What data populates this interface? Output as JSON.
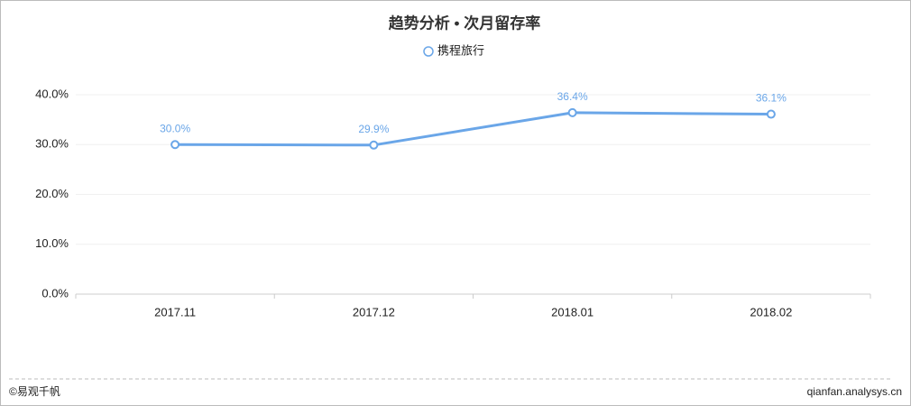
{
  "chart_data": {
    "type": "line",
    "title": "趋势分析 • 次月留存率",
    "categories": [
      "2017.11",
      "2017.12",
      "2018.01",
      "2018.02"
    ],
    "series": [
      {
        "name": "携程旅行",
        "color": "#6aa6e8",
        "values": [
          30.0,
          29.9,
          36.4,
          36.1
        ],
        "value_labels": [
          "30.0%",
          "29.9%",
          "36.4%",
          "36.1%"
        ]
      }
    ],
    "ylim": [
      0,
      40
    ],
    "yticks": [
      {
        "value": 0,
        "label": "0.0%"
      },
      {
        "value": 10,
        "label": "10.0%"
      },
      {
        "value": 20,
        "label": "20.0%"
      },
      {
        "value": 30,
        "label": "30.0%"
      },
      {
        "value": 40,
        "label": "40.0%"
      }
    ],
    "grid": true,
    "legend": "top"
  },
  "footer": {
    "left": "©易观千帆",
    "right": "qianfan.analysys.cn"
  }
}
